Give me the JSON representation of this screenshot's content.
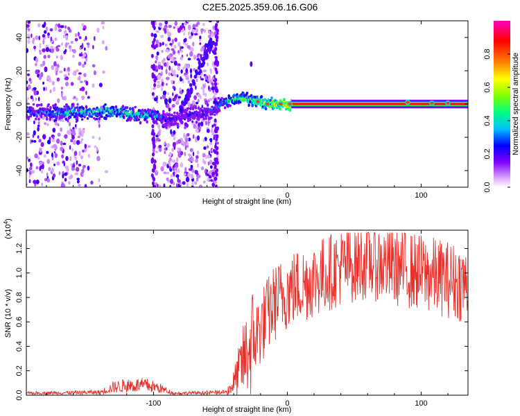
{
  "title": "C2E5.2025.359.06.16.G06",
  "chart_data": [
    {
      "type": "heatmap",
      "xlabel": "Height of straight line (km)",
      "ylabel": "Frequency (Hz)",
      "xlim": [
        -195,
        135
      ],
      "ylim": [
        -50,
        50
      ],
      "x_ticks": [
        -100,
        0,
        100
      ],
      "y_ticks": [
        -40,
        -20,
        0,
        20,
        40
      ],
      "colorbar": {
        "label": "Normalized spectral amplitude",
        "range": [
          0,
          1
        ],
        "ticks": [
          "0.0",
          "0.2",
          "0.4",
          "0.6",
          "0.8"
        ],
        "colors": [
          "#ffffff",
          "#e0b0ff",
          "#8000ff",
          "#0000ff",
          "#00c0ff",
          "#00ff80",
          "#80ff00",
          "#ffff00",
          "#ff8000",
          "#ff0000",
          "#ff00c0"
        ]
      },
      "ridge": [
        {
          "x": -190,
          "y": -5,
          "amp": 0.3
        },
        {
          "x": -170,
          "y": -5,
          "amp": 0.35
        },
        {
          "x": -150,
          "y": -5,
          "amp": 0.4
        },
        {
          "x": -130,
          "y": -4,
          "amp": 0.45
        },
        {
          "x": -110,
          "y": -7,
          "amp": 0.4
        },
        {
          "x": -100,
          "y": -6,
          "amp": 0.35
        },
        {
          "x": -90,
          "y": -10,
          "amp": 0.2
        },
        {
          "x": -60,
          "y": -5,
          "amp": 0.2
        },
        {
          "x": -50,
          "y": 0,
          "amp": 0.35
        },
        {
          "x": -40,
          "y": 3,
          "amp": 0.45
        },
        {
          "x": -30,
          "y": 3,
          "amp": 0.5
        },
        {
          "x": -20,
          "y": 1,
          "amp": 0.55
        },
        {
          "x": -10,
          "y": 0,
          "amp": 0.6
        },
        {
          "x": 0,
          "y": 0,
          "amp": 0.7
        },
        {
          "x": 20,
          "y": 0,
          "amp": 0.9
        },
        {
          "x": 60,
          "y": 0,
          "amp": 0.95
        },
        {
          "x": 100,
          "y": 0,
          "amp": 0.95
        },
        {
          "x": 135,
          "y": 0,
          "amp": 0.95
        }
      ]
    },
    {
      "type": "line",
      "xlabel": "Height of straight line (km)",
      "ylabel": "SNR (10 * v/v)",
      "y_multiplier": "(x10",
      "y_multiplier_exp": "4",
      "xlim": [
        -195,
        135
      ],
      "ylim": [
        0,
        1.35
      ],
      "x_ticks": [
        -100,
        0,
        100
      ],
      "y_ticks": [
        "0.0",
        "0.2",
        "0.4",
        "0.6",
        "0.8",
        "1.0",
        "1.2"
      ],
      "color": "#e8302a",
      "envelope": [
        {
          "x": -195,
          "y": 0.02
        },
        {
          "x": -140,
          "y": 0.03
        },
        {
          "x": -130,
          "y": 0.08
        },
        {
          "x": -120,
          "y": 0.1
        },
        {
          "x": -105,
          "y": 0.1
        },
        {
          "x": -95,
          "y": 0.07
        },
        {
          "x": -85,
          "y": 0.02
        },
        {
          "x": -45,
          "y": 0.03
        },
        {
          "x": -40,
          "y": 0.1
        },
        {
          "x": -30,
          "y": 0.35
        },
        {
          "x": -20,
          "y": 0.55
        },
        {
          "x": -10,
          "y": 0.75
        },
        {
          "x": 0,
          "y": 0.85
        },
        {
          "x": 10,
          "y": 0.9
        },
        {
          "x": 20,
          "y": 0.95
        },
        {
          "x": 40,
          "y": 1.05
        },
        {
          "x": 60,
          "y": 1.1
        },
        {
          "x": 80,
          "y": 1.05
        },
        {
          "x": 100,
          "y": 1.0
        },
        {
          "x": 120,
          "y": 0.95
        },
        {
          "x": 135,
          "y": 0.9
        }
      ]
    }
  ]
}
